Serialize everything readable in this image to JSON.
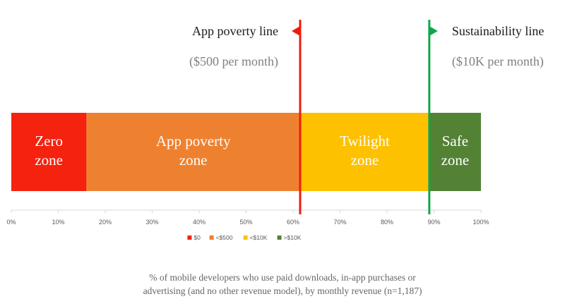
{
  "chart_data": {
    "type": "bar",
    "orientation": "horizontal-stacked-100",
    "series": [
      {
        "name": "$0",
        "value": 16,
        "zone_label": [
          "Zero",
          "zone"
        ],
        "color": "#f4220f",
        "text_color": "#ffffff"
      },
      {
        "name": "<$500",
        "value": 45.5,
        "zone_label": [
          "App poverty",
          "zone"
        ],
        "color": "#ee8130",
        "text_color": "#ffffff"
      },
      {
        "name": "<$10K",
        "value": 27.5,
        "zone_label": [
          "Twilight",
          "zone"
        ],
        "color": "#fec100",
        "text_color": "#ffffff"
      },
      {
        "name": ">$10K",
        "value": 11,
        "zone_label": [
          "Safe",
          "zone"
        ],
        "color": "#548235",
        "text_color": "#ffffff"
      }
    ],
    "x_ticks": [
      "0%",
      "10%",
      "20%",
      "30%",
      "40%",
      "50%",
      "60%",
      "70%",
      "80%",
      "90%",
      "100%"
    ],
    "xlim": [
      0,
      100
    ],
    "grid": false,
    "legend_position": "bottom",
    "thresholds": [
      {
        "name": "App poverty line",
        "sublabel": "($500 per month)",
        "at": 61.5,
        "color": "#ee1c0e",
        "flag_direction": "left"
      },
      {
        "name": "Sustainability line",
        "sublabel": "($10K per month)",
        "at": 89,
        "color": "#11a64b",
        "flag_direction": "right"
      }
    ]
  },
  "caption": {
    "line1": "% of mobile developers who use paid downloads, in-app purchases or",
    "line2": "advertising (and no other revenue model), by monthly revenue (n=1,187)"
  }
}
